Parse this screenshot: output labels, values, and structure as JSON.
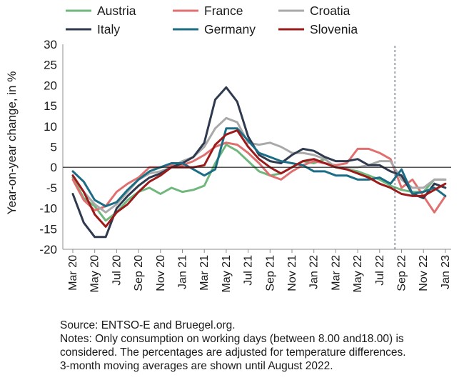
{
  "chart_data": {
    "type": "line",
    "ylabel": "Year-on-year change, in %",
    "xlabel": "",
    "ylim": [
      -20,
      30
    ],
    "yticks": [
      -20,
      -15,
      -10,
      -5,
      0,
      5,
      10,
      15,
      20,
      25,
      30
    ],
    "x_tick_labels": [
      "Mar 20",
      "May 20",
      "Jul 20",
      "Sep 20",
      "Nov 20",
      "Jan 21",
      "Mar 21",
      "May 21",
      "Jul 21",
      "Sep 21",
      "Nov 21",
      "Jan 22",
      "Mar 22",
      "May 22",
      "Jul 22",
      "Sep 22",
      "Nov 22",
      "Jan 23"
    ],
    "x": [
      "Mar 20",
      "Apr 20",
      "May 20",
      "Jun 20",
      "Jul 20",
      "Aug 20",
      "Sep 20",
      "Oct 20",
      "Nov 20",
      "Dec 20",
      "Jan 21",
      "Feb 21",
      "Mar 21",
      "Apr 21",
      "May 21",
      "Jun 21",
      "Jul 21",
      "Aug 21",
      "Sep 21",
      "Oct 21",
      "Nov 21",
      "Dec 21",
      "Jan 22",
      "Feb 22",
      "Mar 22",
      "Apr 22",
      "May 22",
      "Jun 22",
      "Jul 22",
      "Aug 22",
      "Sep 22",
      "Oct 22",
      "Nov 22",
      "Dec 22",
      "Jan 23"
    ],
    "annotations": [
      "vertical dashed line between Aug 22 and Sep 22 (end of 3-month moving averages)"
    ],
    "legend_position": "top",
    "series": [
      {
        "name": "Austria",
        "color": "#70b77e",
        "values": [
          -2.5,
          -7.5,
          -9.5,
          -13,
          -11,
          -8,
          -6,
          -5,
          -6.5,
          -5,
          -6,
          -5.5,
          -4.5,
          1,
          5.5,
          4,
          1.5,
          -1,
          -2,
          -1.5,
          0,
          1.5,
          1,
          2,
          0,
          -0.5,
          -1,
          -2,
          -3,
          -4.5,
          -5.5,
          -6,
          -6,
          -3,
          -3
        ]
      },
      {
        "name": "France",
        "color": "#e07070",
        "values": [
          -3,
          -8,
          -10.5,
          -9.5,
          -6,
          -4,
          -2.5,
          0,
          0,
          0.5,
          0.5,
          1.5,
          3,
          5,
          6,
          5.5,
          3.5,
          1,
          -2,
          -3,
          -1,
          0.5,
          1.5,
          1,
          0.5,
          1,
          4.5,
          4.5,
          3.5,
          2,
          -5,
          -3,
          -7,
          -11,
          -7
        ]
      },
      {
        "name": "Croatia",
        "color": "#a9a9a9",
        "values": [
          -2,
          -6,
          -9,
          -11,
          -9,
          -6,
          -3,
          -1.5,
          -1,
          0,
          1.5,
          2.5,
          5,
          9.5,
          12,
          11,
          6,
          5.5,
          6,
          5,
          3.5,
          3.5,
          3,
          2,
          0,
          0,
          0,
          0.5,
          1.5,
          1.5,
          -3,
          -5,
          -5,
          -3,
          -3
        ]
      },
      {
        "name": "Italy",
        "color": "#2f3a4f",
        "values": [
          -6.5,
          -13.5,
          -17,
          -17,
          -10,
          -7,
          -4.5,
          -2.5,
          -1.5,
          0,
          1,
          2.5,
          6,
          16.5,
          19.5,
          16,
          7.5,
          3,
          1.5,
          1,
          3,
          4.5,
          4,
          2.5,
          1.5,
          1.5,
          2,
          0.5,
          0.5,
          -1,
          -2,
          -6.5,
          -7.5,
          -4,
          -5
        ]
      },
      {
        "name": "Germany",
        "color": "#1b6d85",
        "values": [
          -1,
          -3.5,
          -8,
          -9.5,
          -8.5,
          -5.5,
          -3,
          -1,
          0,
          1,
          1,
          -0.5,
          -2,
          -0.5,
          9.5,
          9.5,
          6.5,
          3.5,
          2.5,
          1.5,
          1,
          0.5,
          -1,
          -1,
          -2,
          -2,
          -3,
          -3,
          -2.5,
          -4,
          -0.5,
          -6.5,
          -6,
          -5,
          -7
        ]
      },
      {
        "name": "Slovenia",
        "color": "#9c1a1a",
        "values": [
          -2,
          -6,
          -11.5,
          -14.5,
          -11,
          -9,
          -6,
          -3.5,
          -2,
          0,
          0,
          0,
          0.5,
          5.5,
          8,
          9,
          5,
          2,
          0,
          -1.5,
          0,
          1.5,
          2,
          1,
          0,
          -0.5,
          -1.5,
          -2.5,
          -4,
          -5,
          -6.5,
          -7,
          -7,
          -5.5,
          -4
        ]
      }
    ]
  },
  "source": "Source: ENTSO-E and Bruegel.org.",
  "notes": [
    "Notes: Only consumption on working days (between 8.00 and18.00) is",
    "considered. The percentages are adjusted for temperature differences.",
    "3-month moving averages are shown until August 2022."
  ]
}
